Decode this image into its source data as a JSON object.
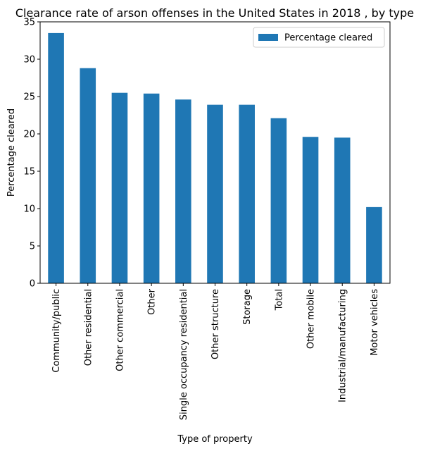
{
  "chart_data": {
    "type": "bar",
    "title": "Clearance rate of arson offenses in the United States in 2018 , by type",
    "xlabel": "Type of property",
    "ylabel": "Percentage cleared",
    "categories": [
      "Community/public",
      "Other residential",
      "Other commercial",
      "Other",
      "Single occupancy residential",
      "Other structure",
      "Storage",
      "Total",
      "Other mobile",
      "Industrial/manufacturing",
      "Motor vehicles"
    ],
    "series": [
      {
        "name": "Percentage cleared",
        "values": [
          33.5,
          28.8,
          25.5,
          25.4,
          24.6,
          23.9,
          23.9,
          22.1,
          19.6,
          19.5,
          10.2
        ]
      }
    ],
    "ylim": [
      0,
      35
    ],
    "yticks": [
      "0",
      "5",
      "10",
      "15",
      "20",
      "25",
      "30",
      "35"
    ],
    "grid": false,
    "legend_position": "top-right",
    "colors": {
      "bar": "#1f77b4",
      "axis": "#000000"
    }
  }
}
